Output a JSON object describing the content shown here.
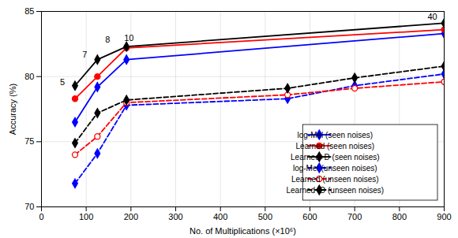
{
  "chart_data": {
    "type": "line",
    "x_label": "No. of Multiplications (×10⁶)",
    "y_label": "Accuracy (%)",
    "series": [
      {
        "name": "log-Mel (seen noises)",
        "color": "#0000FF",
        "marker": "diamond",
        "line_style": "solid",
        "x": [
          75,
          125,
          190,
          900
        ],
        "values": [
          76.5,
          79.2,
          81.3,
          83.3
        ]
      },
      {
        "name": "Learned (seen noises)",
        "color": "#FF0000",
        "marker": "circle",
        "line_style": "solid",
        "x": [
          75,
          125,
          190,
          900
        ],
        "values": [
          78.3,
          80.0,
          82.2,
          83.6
        ]
      },
      {
        "name": "Learned+D (seen noises)",
        "color": "#000000",
        "marker": "diamond",
        "line_style": "solid",
        "x": [
          75,
          125,
          190,
          900
        ],
        "values": [
          79.3,
          81.3,
          82.3,
          84.1
        ]
      },
      {
        "name": "log-Mel (unseen noises)",
        "color": "#0000FF",
        "marker": "diamond",
        "line_style": "dashed",
        "x": [
          75,
          125,
          190,
          550,
          700,
          900
        ],
        "values": [
          71.8,
          74.1,
          77.8,
          78.3,
          79.3,
          80.2
        ]
      },
      {
        "name": "Learned (unseen noises)",
        "color": "#FF0000",
        "marker": "open_circle",
        "line_style": "dashed",
        "x": [
          75,
          125,
          190,
          550,
          700,
          900
        ],
        "values": [
          74.0,
          75.4,
          78.0,
          78.6,
          79.1,
          79.6
        ]
      },
      {
        "name": "Learned+D (unseen noises)",
        "color": "#000000",
        "marker": "diamond",
        "line_style": "dashed",
        "x": [
          75,
          125,
          190,
          550,
          700,
          900
        ],
        "values": [
          74.9,
          77.2,
          78.2,
          79.1,
          79.9,
          80.8
        ]
      }
    ],
    "annotations": [
      {
        "text": "5",
        "x": 75,
        "y": 79.3
      },
      {
        "text": "7",
        "x": 125,
        "y": 81.3
      },
      {
        "text": "8",
        "x": 190,
        "y": 82.3
      },
      {
        "text": "10",
        "x": 190,
        "y": 82.2
      },
      {
        "text": "40",
        "x": 900,
        "y": 84.1
      }
    ],
    "xlim": [
      0,
      900
    ],
    "ylim": [
      70,
      85
    ],
    "xticks": [
      0,
      100,
      200,
      300,
      400,
      500,
      600,
      700,
      800,
      900
    ],
    "yticks": [
      70,
      75,
      80,
      85
    ],
    "grid": true,
    "legend": "lower right"
  }
}
